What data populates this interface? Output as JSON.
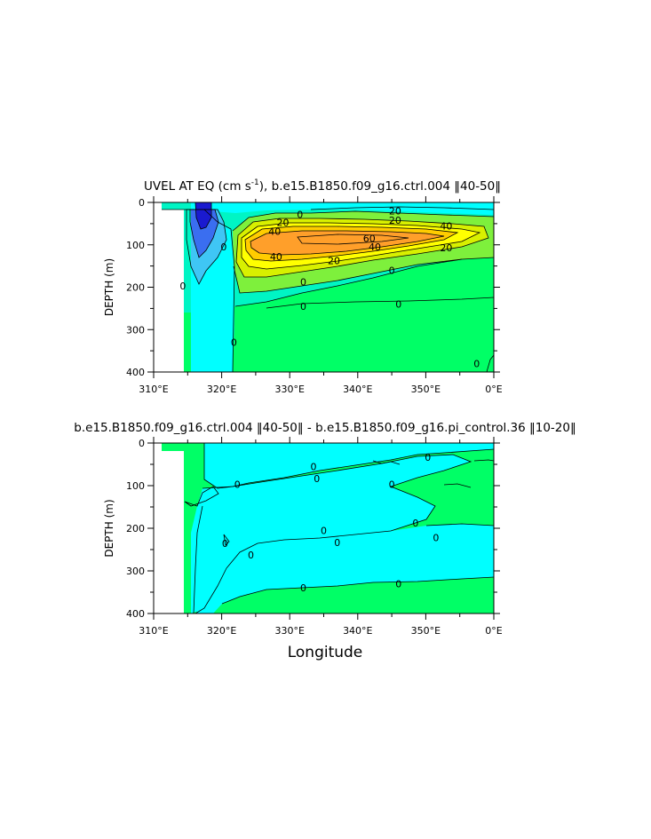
{
  "chart_data": [
    {
      "type": "heatmap",
      "subtype": "filled-contour",
      "title_text": "UVEL AT EQ (cm s",
      "title_sup": "-1",
      "title_rest": "), b.e15.B1850.f09_g16.ctrl.004 ‖40-50‖",
      "xlabel": "",
      "ylabel": "DEPTH (m)",
      "xlim": [
        310,
        360
      ],
      "ylim": [
        400,
        0
      ],
      "xticks": [
        "310°E",
        "320°E",
        "330°E",
        "340°E",
        "350°E",
        "0°E"
      ],
      "yticks": [
        "0",
        "100",
        "200",
        "300",
        "400"
      ],
      "levels_colors": {
        "neg_strong": "#1a1ad0",
        "neg_mid": "#3a6ef0",
        "neg_weak": "#3fc6f5",
        "near_zero_neg": "#00ffff",
        "zero_band": "#00f5c4",
        "pos_weak": "#00ff66",
        "pos_10": "#7ef03c",
        "pos_20": "#d8f000",
        "pos_30": "#ffff00",
        "pos_40": "#ffcc00",
        "pos_50": "#ff9f2a"
      },
      "contour_labels": [
        {
          "text": "20",
          "lon": 345.5,
          "depth": 20
        },
        {
          "text": "20",
          "lon": 345.5,
          "depth": 42
        },
        {
          "text": "0",
          "lon": 331.5,
          "depth": 28
        },
        {
          "text": "40",
          "lon": 353,
          "depth": 55
        },
        {
          "text": "20",
          "lon": 329,
          "depth": 47
        },
        {
          "text": "40",
          "lon": 327.8,
          "depth": 68
        },
        {
          "text": "60",
          "lon": 341.7,
          "depth": 85
        },
        {
          "text": "40",
          "lon": 342.5,
          "depth": 105
        },
        {
          "text": "20",
          "lon": 353,
          "depth": 107
        },
        {
          "text": "40",
          "lon": 328,
          "depth": 128
        },
        {
          "text": "20",
          "lon": 336.5,
          "depth": 137
        },
        {
          "text": "0",
          "lon": 345,
          "depth": 160
        },
        {
          "text": "0",
          "lon": 332,
          "depth": 187
        },
        {
          "text": "0",
          "lon": 332,
          "depth": 245
        },
        {
          "text": "0",
          "lon": 346,
          "depth": 240
        },
        {
          "text": "0",
          "lon": 314.3,
          "depth": 197
        },
        {
          "text": "0",
          "lon": 321.8,
          "depth": 330
        },
        {
          "text": "0",
          "lon": 320.3,
          "depth": 105
        },
        {
          "text": "0",
          "lon": 357.5,
          "depth": 380
        }
      ]
    },
    {
      "type": "heatmap",
      "subtype": "filled-contour",
      "title_text": "b.e15.B1850.f09_g16.ctrl.004 ‖40-50‖ - b.e15.B1850.f09_g16.pi_control.36 ‖10-20‖",
      "xlabel": "Longitude",
      "ylabel": "DEPTH (m)",
      "xlim": [
        310,
        360
      ],
      "ylim": [
        400,
        0
      ],
      "xticks": [
        "310°E",
        "320°E",
        "330°E",
        "340°E",
        "350°E",
        "0°E"
      ],
      "yticks": [
        "0",
        "100",
        "200",
        "300",
        "400"
      ],
      "contour_labels": [
        {
          "text": "0",
          "lon": 333.5,
          "depth": 55
        },
        {
          "text": "0",
          "lon": 334,
          "depth": 83
        },
        {
          "text": "0",
          "lon": 322.3,
          "depth": 97
        },
        {
          "text": "0",
          "lon": 345,
          "depth": 97
        },
        {
          "text": "0",
          "lon": 350.3,
          "depth": 33
        },
        {
          "text": "0",
          "lon": 335,
          "depth": 205
        },
        {
          "text": "0",
          "lon": 337,
          "depth": 233
        },
        {
          "text": "0",
          "lon": 348.5,
          "depth": 188
        },
        {
          "text": "0",
          "lon": 351.5,
          "depth": 222
        },
        {
          "text": "0",
          "lon": 320.5,
          "depth": 235
        },
        {
          "text": "0",
          "lon": 324.3,
          "depth": 262
        },
        {
          "text": "0",
          "lon": 332,
          "depth": 340
        },
        {
          "text": "0",
          "lon": 346,
          "depth": 330
        }
      ]
    }
  ]
}
